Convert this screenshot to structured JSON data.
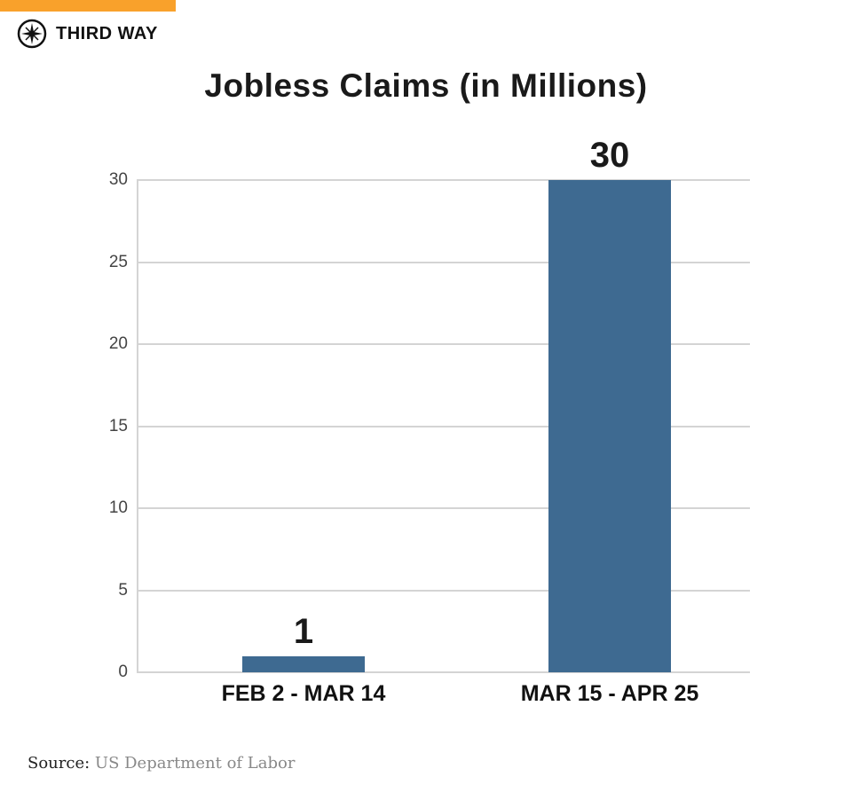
{
  "brand": {
    "name": "THIRD WAY",
    "accent_color": "#f9a12b",
    "icon": "compass-icon"
  },
  "chart_data": {
    "type": "bar",
    "title": "Jobless Claims (in Millions)",
    "categories": [
      "FEB 2 - MAR 14",
      "MAR 15 - APR 25"
    ],
    "values": [
      1,
      30
    ],
    "data_labels": [
      "1",
      "30"
    ],
    "xlabel": "",
    "ylabel": "",
    "ylim": [
      0,
      30
    ],
    "yticks": [
      0,
      5,
      10,
      15,
      20,
      25,
      30
    ],
    "grid": true,
    "legend": null,
    "bar_color": "#3e6a91"
  },
  "source": {
    "label": "Source:",
    "value": "US Department of Labor"
  }
}
